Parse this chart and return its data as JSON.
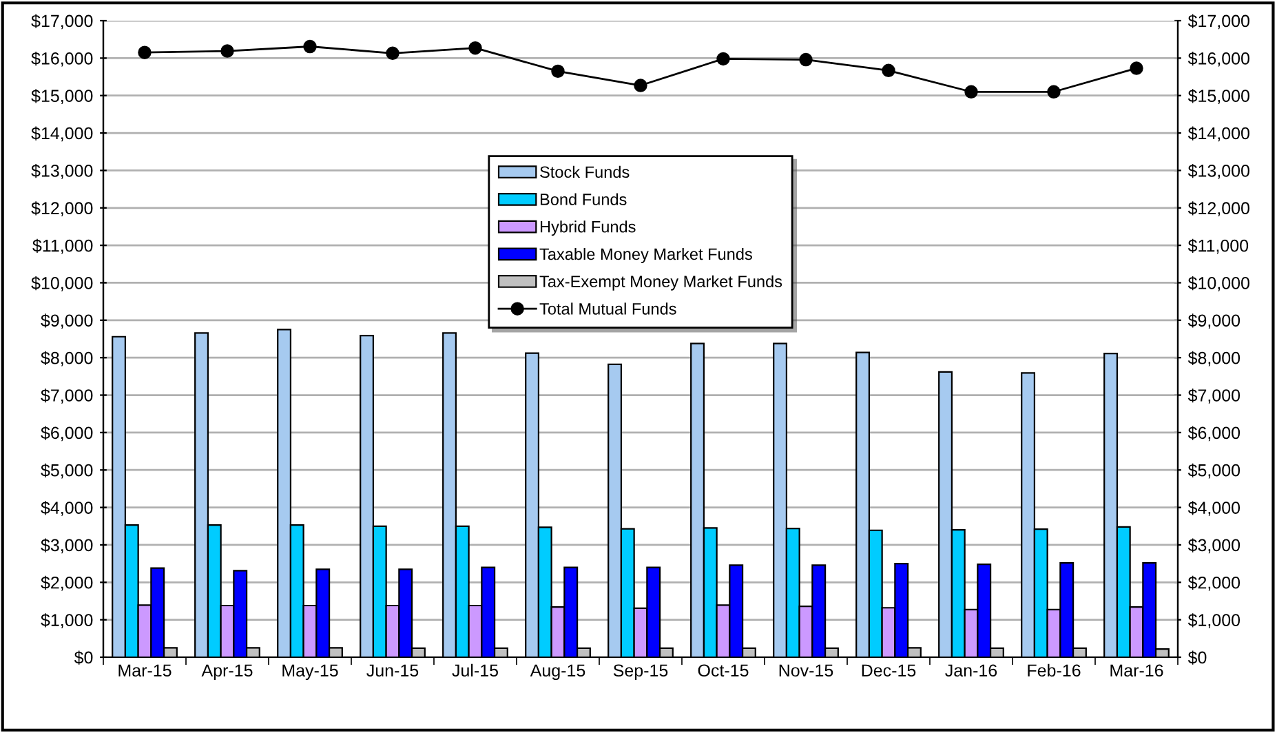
{
  "chart_data": {
    "type": "bar",
    "categories": [
      "Mar-15",
      "Apr-15",
      "May-15",
      "Jun-15",
      "Jul-15",
      "Aug-15",
      "Sep-15",
      "Oct-15",
      "Nov-15",
      "Dec-15",
      "Jan-16",
      "Feb-16",
      "Mar-16"
    ],
    "series": [
      {
        "name": "Stock Funds",
        "color": "#a6caf0",
        "values": [
          8560,
          8660,
          8750,
          8590,
          8660,
          8120,
          7820,
          8380,
          8380,
          8140,
          7620,
          7590,
          8110
        ]
      },
      {
        "name": "Bond Funds",
        "color": "#00ccff",
        "values": [
          3530,
          3530,
          3530,
          3500,
          3500,
          3470,
          3430,
          3450,
          3440,
          3390,
          3400,
          3420,
          3480
        ]
      },
      {
        "name": "Hybrid Funds",
        "color": "#cc99ff",
        "values": [
          1390,
          1380,
          1380,
          1380,
          1380,
          1340,
          1310,
          1390,
          1360,
          1320,
          1270,
          1270,
          1340
        ]
      },
      {
        "name": "Taxable Money Market Funds",
        "color": "#0000ff",
        "values": [
          2380,
          2310,
          2350,
          2350,
          2400,
          2400,
          2400,
          2460,
          2460,
          2500,
          2480,
          2520,
          2520
        ]
      },
      {
        "name": "Tax-Exempt Money Market Funds",
        "color": "#c0c0c0",
        "values": [
          250,
          250,
          250,
          240,
          240,
          240,
          240,
          240,
          240,
          250,
          240,
          240,
          220
        ]
      },
      {
        "name": "Total Mutual Funds",
        "type": "line",
        "color": "#000000",
        "marker": "circle",
        "values": [
          16150,
          16190,
          16310,
          16130,
          16270,
          15650,
          15270,
          15980,
          15960,
          15670,
          15100,
          15100,
          15730
        ]
      }
    ],
    "ylim": [
      0,
      17000
    ],
    "yticks": [
      {
        "value": 0,
        "label": "$0"
      },
      {
        "value": 1000,
        "label": "$1,000"
      },
      {
        "value": 2000,
        "label": "$2,000"
      },
      {
        "value": 3000,
        "label": "$3,000"
      },
      {
        "value": 4000,
        "label": "$4,000"
      },
      {
        "value": 5000,
        "label": "$5,000"
      },
      {
        "value": 6000,
        "label": "$6,000"
      },
      {
        "value": 7000,
        "label": "$7,000"
      },
      {
        "value": 8000,
        "label": "$8,000"
      },
      {
        "value": 9000,
        "label": "$9,000"
      },
      {
        "value": 10000,
        "label": "$10,000"
      },
      {
        "value": 11000,
        "label": "$11,000"
      },
      {
        "value": 12000,
        "label": "$12,000"
      },
      {
        "value": 13000,
        "label": "$13,000"
      },
      {
        "value": 14000,
        "label": "$14,000"
      },
      {
        "value": 15000,
        "label": "$15,000"
      },
      {
        "value": 16000,
        "label": "$16,000"
      },
      {
        "value": 17000,
        "label": "$17,000"
      }
    ],
    "y2lim": [
      0,
      17000
    ],
    "y2ticks": [
      {
        "value": 0,
        "label": "$0"
      },
      {
        "value": 1000,
        "label": "$1,000"
      },
      {
        "value": 2000,
        "label": "$2,000"
      },
      {
        "value": 3000,
        "label": "$3,000"
      },
      {
        "value": 4000,
        "label": "$4,000"
      },
      {
        "value": 5000,
        "label": "$5,000"
      },
      {
        "value": 6000,
        "label": "$6,000"
      },
      {
        "value": 7000,
        "label": "$7,000"
      },
      {
        "value": 8000,
        "label": "$8,000"
      },
      {
        "value": 9000,
        "label": "$9,000"
      },
      {
        "value": 10000,
        "label": "$10,000"
      },
      {
        "value": 11000,
        "label": "$11,000"
      },
      {
        "value": 12000,
        "label": "$12,000"
      },
      {
        "value": 13000,
        "label": "$13,000"
      },
      {
        "value": 14000,
        "label": "$14,000"
      },
      {
        "value": 15000,
        "label": "$15,000"
      },
      {
        "value": 16000,
        "label": "$16,000"
      },
      {
        "value": 17000,
        "label": "$17,000"
      }
    ],
    "grid": "y",
    "legend": "top"
  }
}
